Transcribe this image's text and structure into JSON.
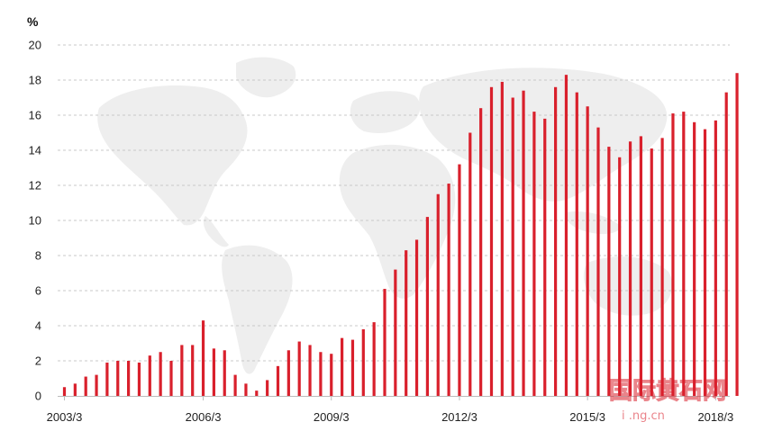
{
  "colors": {
    "bar": "#d9202c",
    "grid": "#c8c8c8",
    "map": "#eeeeee",
    "axis": "#bbbbbb",
    "watermark": "#d9202c"
  },
  "watermark": {
    "glyphs": "国际黄石网",
    "url": "i .ng.cn"
  },
  "chart_data": {
    "type": "bar",
    "title": "",
    "xlabel": "",
    "ylabel": "%",
    "ylim": [
      0,
      20
    ],
    "yticks": [
      0,
      2,
      4,
      6,
      8,
      10,
      12,
      14,
      16,
      18,
      20
    ],
    "xtick_labels": [
      "2003/3",
      "2006/3",
      "2009/3",
      "2012/3",
      "2015/3",
      "2018/3"
    ],
    "xtick_bar_index": [
      0,
      13,
      25,
      37,
      49,
      61
    ],
    "grid": "horizontal dashed",
    "values": [
      0.5,
      0.7,
      1.1,
      1.2,
      1.9,
      2.0,
      2.0,
      1.9,
      2.3,
      2.5,
      2.0,
      2.9,
      2.9,
      4.3,
      2.7,
      2.6,
      1.2,
      0.7,
      0.3,
      0.9,
      1.7,
      2.6,
      3.1,
      2.9,
      2.5,
      2.4,
      3.3,
      3.2,
      3.8,
      4.2,
      6.1,
      7.2,
      8.3,
      8.9,
      10.2,
      11.5,
      12.1,
      13.2,
      15.0,
      16.4,
      17.6,
      17.9,
      17.0,
      17.4,
      16.2,
      15.8,
      17.6,
      18.3,
      17.3,
      16.5,
      15.3,
      14.2,
      13.6,
      14.5,
      14.8,
      14.1,
      14.7,
      16.1,
      16.2,
      15.6,
      15.2,
      15.7,
      17.3,
      18.4
    ]
  }
}
